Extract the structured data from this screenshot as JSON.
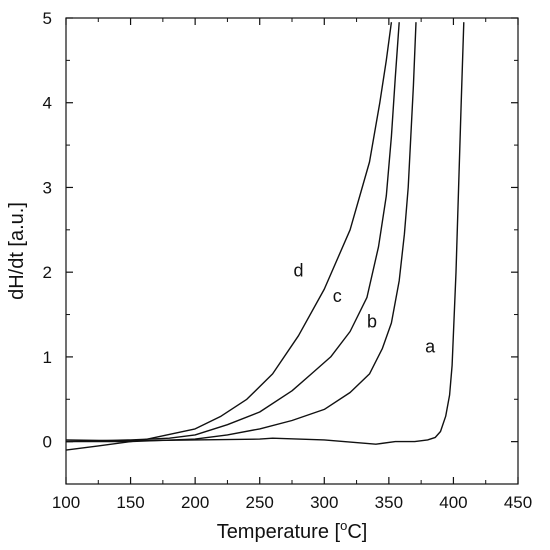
{
  "chart_data": {
    "type": "line",
    "xlabel": "Temperature [°C]",
    "ylabel": "dH/dt [a.u.]",
    "xlim": [
      100,
      450
    ],
    "ylim": [
      -0.5,
      5
    ],
    "xticks": [
      "100",
      "150",
      "200",
      "250",
      "300",
      "350",
      "400",
      "450"
    ],
    "yticks": [
      "0",
      "1",
      "2",
      "3",
      "4",
      "5"
    ],
    "series": [
      {
        "name": "a",
        "label_at": [
          382,
          1.05
        ],
        "points": [
          [
            100,
            0.02
          ],
          [
            150,
            0.01
          ],
          [
            200,
            0.02
          ],
          [
            250,
            0.03
          ],
          [
            260,
            0.04
          ],
          [
            300,
            0.02
          ],
          [
            340,
            -0.03
          ],
          [
            355,
            0.0
          ],
          [
            370,
            0.0
          ],
          [
            380,
            0.02
          ],
          [
            386,
            0.05
          ],
          [
            390,
            0.12
          ],
          [
            394,
            0.3
          ],
          [
            397,
            0.55
          ],
          [
            399,
            0.9
          ],
          [
            402,
            2.0
          ],
          [
            404,
            3.0
          ],
          [
            406,
            4.0
          ],
          [
            408,
            4.95
          ]
        ]
      },
      {
        "name": "b",
        "label_at": [
          337,
          1.35
        ],
        "points": [
          [
            100,
            0.0
          ],
          [
            150,
            0.0
          ],
          [
            200,
            0.03
          ],
          [
            225,
            0.08
          ],
          [
            250,
            0.15
          ],
          [
            275,
            0.25
          ],
          [
            300,
            0.38
          ],
          [
            320,
            0.58
          ],
          [
            335,
            0.8
          ],
          [
            345,
            1.1
          ],
          [
            352,
            1.4
          ],
          [
            358,
            1.9
          ],
          [
            362,
            2.45
          ],
          [
            365,
            3.0
          ],
          [
            367,
            3.6
          ],
          [
            369,
            4.2
          ],
          [
            371,
            4.95
          ]
        ]
      },
      {
        "name": "c",
        "label_at": [
          310,
          1.65
        ],
        "points": [
          [
            100,
            0.0
          ],
          [
            150,
            0.02
          ],
          [
            180,
            0.04
          ],
          [
            200,
            0.08
          ],
          [
            225,
            0.2
          ],
          [
            250,
            0.35
          ],
          [
            275,
            0.6
          ],
          [
            290,
            0.8
          ],
          [
            305,
            1.0
          ],
          [
            320,
            1.3
          ],
          [
            333,
            1.7
          ],
          [
            342,
            2.3
          ],
          [
            348,
            2.9
          ],
          [
            352,
            3.6
          ],
          [
            355,
            4.3
          ],
          [
            358,
            4.95
          ]
        ]
      },
      {
        "name": "d",
        "label_at": [
          280,
          1.95
        ],
        "points": [
          [
            100,
            -0.1
          ],
          [
            125,
            -0.05
          ],
          [
            160,
            0.02
          ],
          [
            200,
            0.15
          ],
          [
            220,
            0.3
          ],
          [
            240,
            0.5
          ],
          [
            260,
            0.8
          ],
          [
            280,
            1.25
          ],
          [
            300,
            1.8
          ],
          [
            320,
            2.5
          ],
          [
            335,
            3.3
          ],
          [
            343,
            4.0
          ],
          [
            348,
            4.5
          ],
          [
            352,
            4.95
          ]
        ]
      }
    ]
  }
}
